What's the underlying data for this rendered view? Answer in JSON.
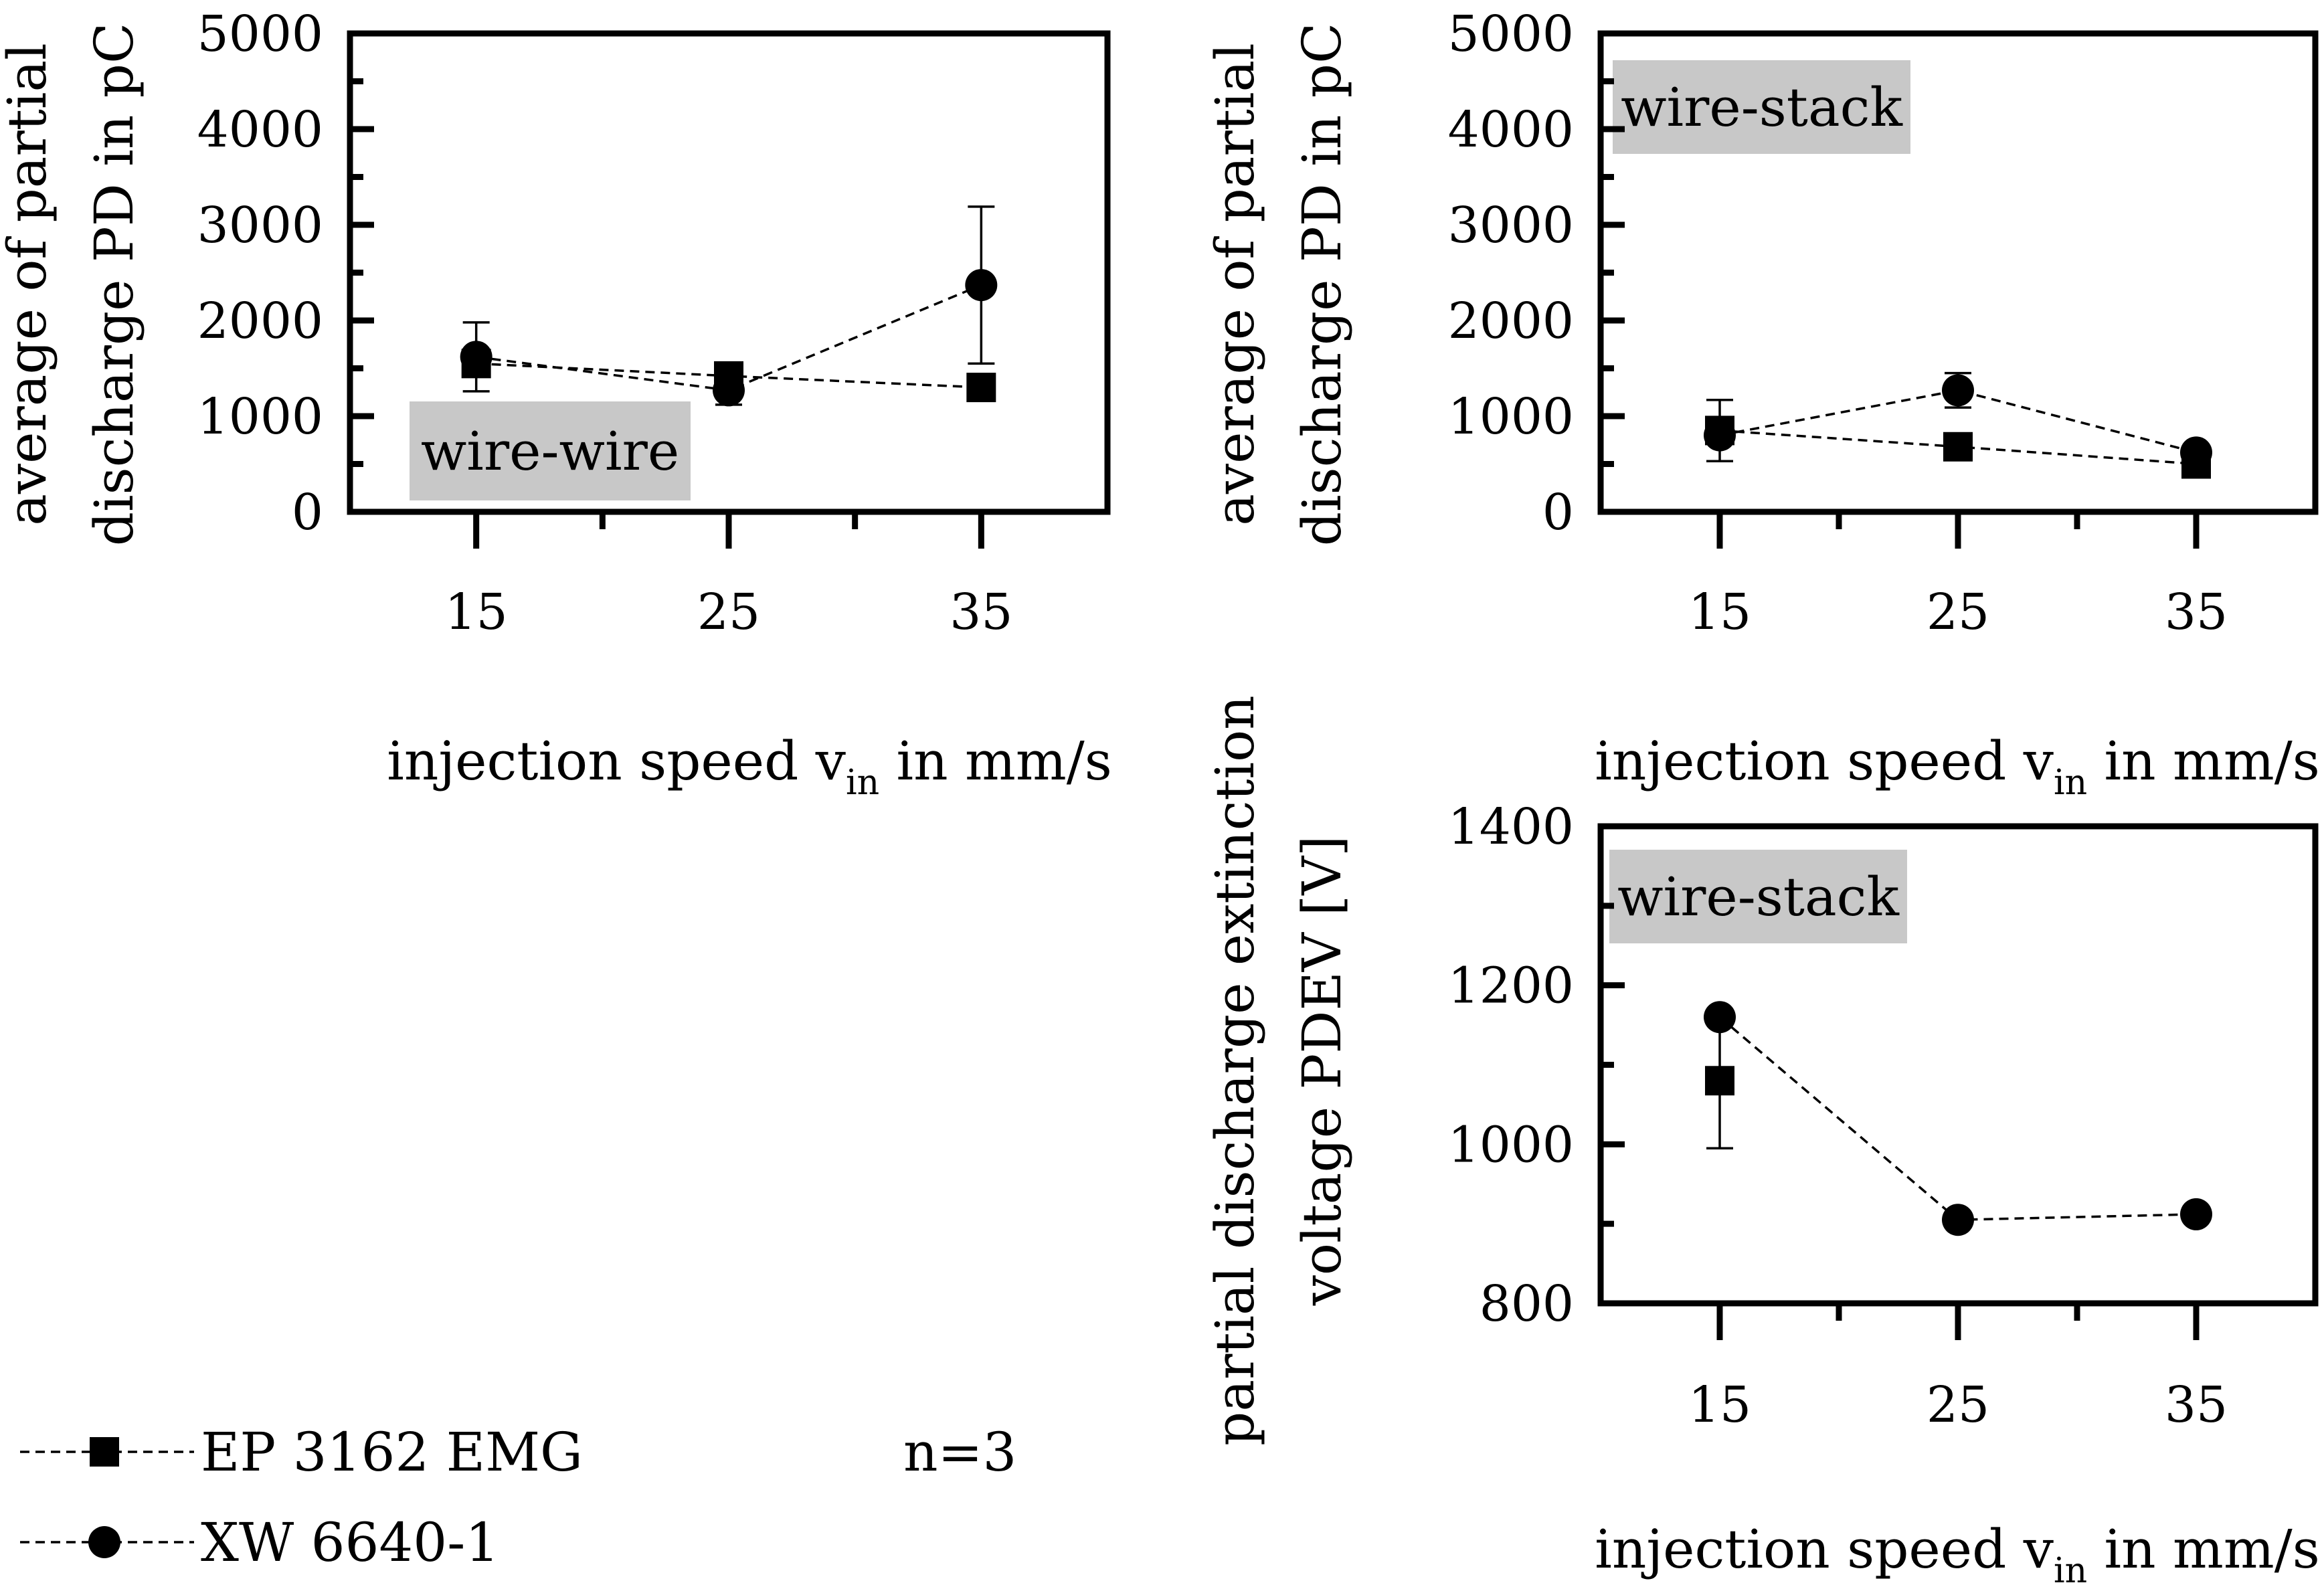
{
  "chart_data": [
    {
      "type": "line",
      "label": "wire-wire",
      "xlabel": "injection speed v_in in mm/s",
      "xlabel_main": "injection speed v",
      "xlabel_sub": "in",
      "xlabel_tail": " in mm/s",
      "ylabel_lines": [
        "average of partial",
        "discharge PD in pC"
      ],
      "ylim": [
        0,
        5000
      ],
      "yticks": [
        0,
        1000,
        2000,
        3000,
        4000,
        5000
      ],
      "xticks": [
        "15",
        "25",
        "35"
      ],
      "x": [
        15,
        25,
        35
      ],
      "xlim": [
        10,
        40
      ],
      "series": [
        {
          "name": "EP 3162 EMG",
          "marker": "square",
          "values": [
            1550,
            1420,
            1300
          ],
          "errors": [
            null,
            null,
            null
          ]
        },
        {
          "name": "XW 6640-1",
          "marker": "circle",
          "values": [
            1620,
            1270,
            2370
          ],
          "errors": [
            360,
            150,
            820
          ]
        }
      ]
    },
    {
      "type": "line",
      "label": "wire-stack",
      "xlabel": "injection speed v_in in mm/s",
      "xlabel_main": "injection speed v",
      "xlabel_sub": "in",
      "xlabel_tail": " in mm/s",
      "ylabel_lines": [
        "average of partial",
        "discharge PD in pC"
      ],
      "ylim": [
        0,
        5000
      ],
      "yticks": [
        0,
        1000,
        2000,
        3000,
        4000,
        5000
      ],
      "xticks": [
        "15",
        "25",
        "35"
      ],
      "x": [
        15,
        25,
        35
      ],
      "xlim": [
        10,
        40
      ],
      "series": [
        {
          "name": "EP 3162 EMG",
          "marker": "square",
          "values": [
            850,
            680,
            500
          ],
          "errors": [
            320,
            null,
            null
          ]
        },
        {
          "name": "XW 6640-1",
          "marker": "circle",
          "values": [
            800,
            1270,
            620
          ],
          "errors": [
            null,
            180,
            null
          ]
        }
      ]
    },
    {
      "type": "line",
      "label": "wire-stack",
      "xlabel": "injection speed v_in in mm/s",
      "xlabel_main": "injection speed v",
      "xlabel_sub": "in",
      "xlabel_tail": " in mm/s",
      "ylabel_lines": [
        "partial discharge extinction",
        "voltage PDEV [V]"
      ],
      "ylim": [
        800,
        1400
      ],
      "yticks": [
        800,
        1000,
        1200,
        1400
      ],
      "xticks": [
        "15",
        "25",
        "35"
      ],
      "x": [
        15,
        25,
        35
      ],
      "xlim": [
        10,
        40
      ],
      "series": [
        {
          "name": "EP 3162 EMG",
          "marker": "square",
          "values": [
            1080,
            null,
            null
          ],
          "errors": [
            85,
            null,
            null
          ]
        },
        {
          "name": "XW 6640-1",
          "marker": "circle",
          "values": [
            1160,
            905,
            912
          ],
          "errors": [
            null,
            null,
            null
          ]
        }
      ]
    }
  ],
  "legend": {
    "items": [
      {
        "name": "EP 3162 EMG",
        "marker": "square"
      },
      {
        "name": "XW 6640-1",
        "marker": "circle"
      }
    ],
    "note": "n=3"
  }
}
